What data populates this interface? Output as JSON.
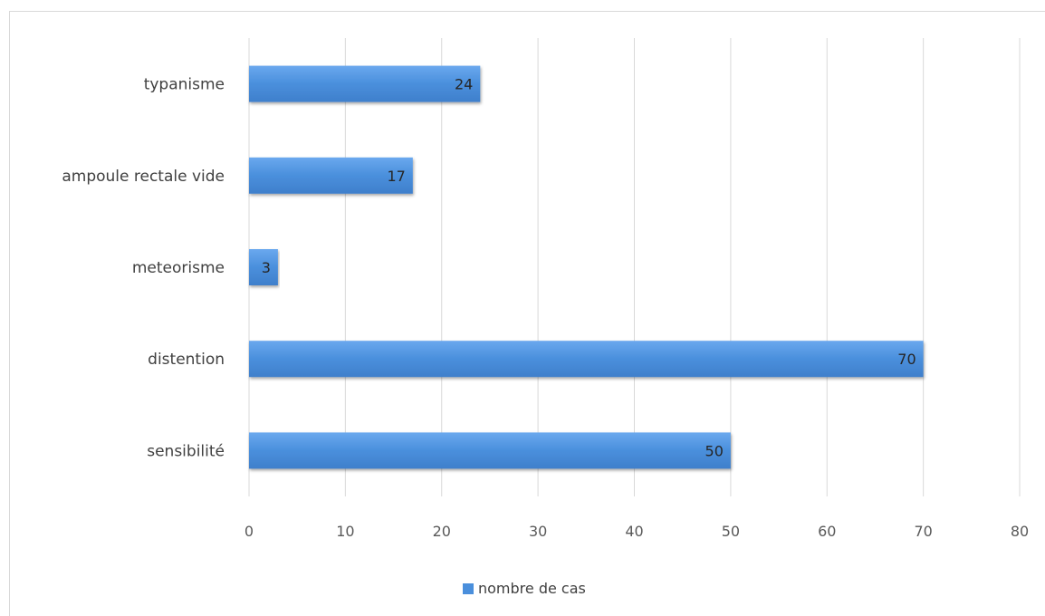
{
  "chart_data": {
    "type": "bar",
    "orientation": "horizontal",
    "categories": [
      "typanisme",
      "ampoule rectale vide",
      "meteorisme",
      "distention",
      "sensibilité"
    ],
    "series": [
      {
        "name": "nombre de cas",
        "values": [
          24,
          17,
          3,
          70,
          50
        ],
        "color": "#4a8fdc"
      }
    ],
    "data_labels": [
      "24",
      "17",
      "3",
      "70",
      "50"
    ],
    "xlim": [
      0,
      80
    ],
    "x_ticks": [
      0,
      10,
      20,
      30,
      40,
      50,
      60,
      70,
      80
    ],
    "x_tick_labels": [
      "0",
      "10",
      "20",
      "30",
      "40",
      "50",
      "60",
      "70",
      "80"
    ],
    "grid": "vertical",
    "legend_position": "bottom",
    "title": "",
    "xlabel": "",
    "ylabel": ""
  }
}
